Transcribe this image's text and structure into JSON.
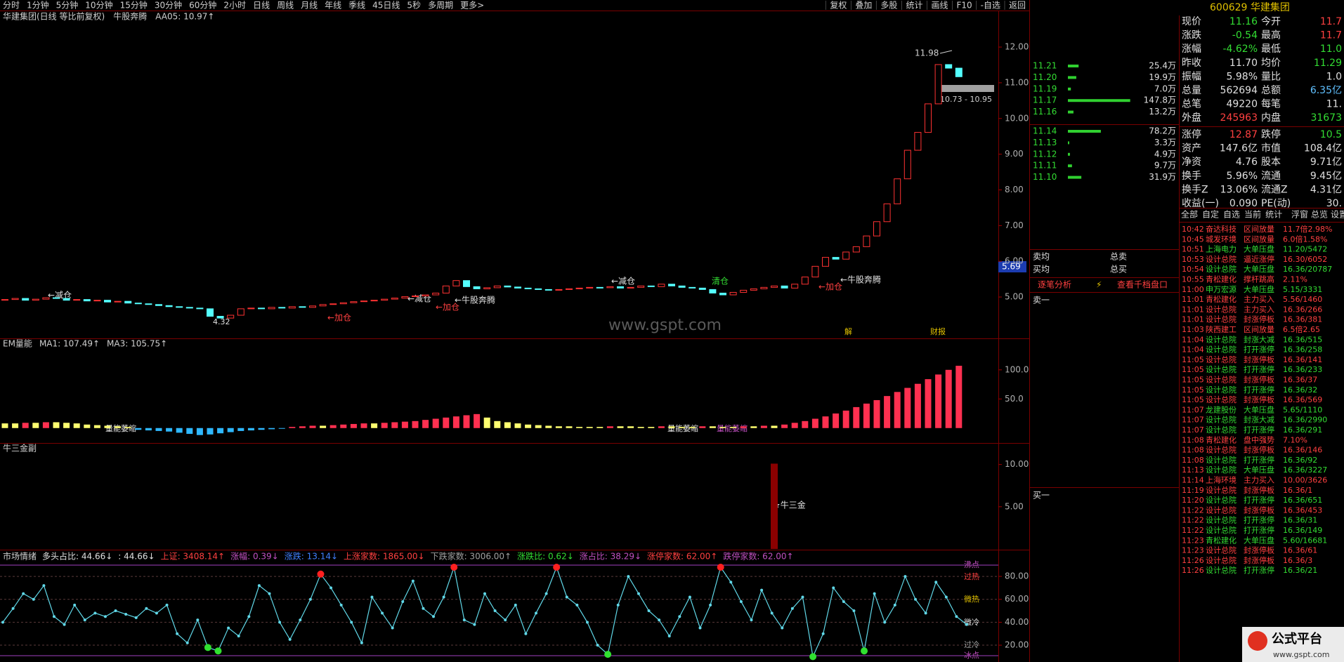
{
  "toolbar": {
    "left": [
      "分时",
      "1分钟",
      "5分钟",
      "10分钟",
      "15分钟",
      "30分钟",
      "60分钟",
      "2小时",
      "日线",
      "周线",
      "月线",
      "年线",
      "季线",
      "45日线",
      "5秒",
      "多周期",
      "更多>"
    ],
    "right": [
      "复权",
      "叠加",
      "多股",
      "统计",
      "画线",
      "F10",
      "-自选",
      "返回"
    ]
  },
  "main": {
    "title": "华建集团(日线 等比前复权)",
    "indicator": "牛股奔腾",
    "aa05": "AA05: 10.97↑",
    "ylim": [
      3.92,
      12.63
    ],
    "yticks": [
      {
        "value": 5,
        "label": "5.00"
      },
      {
        "value": 6,
        "label": "6.00"
      },
      {
        "value": 7,
        "label": "7.00"
      },
      {
        "value": 8,
        "label": "8.00"
      },
      {
        "value": 9,
        "label": "9.00"
      },
      {
        "value": 10,
        "label": "10.00"
      },
      {
        "value": 11,
        "label": "11.00"
      },
      {
        "value": 12,
        "label": "12.00"
      }
    ],
    "closes": [
      4.92,
      4.95,
      4.9,
      4.93,
      4.97,
      4.95,
      4.9,
      4.92,
      4.88,
      4.9,
      4.85,
      4.87,
      4.82,
      4.8,
      4.78,
      4.75,
      4.72,
      4.7,
      4.68,
      4.66,
      4.45,
      4.4,
      4.48,
      4.66,
      4.68,
      4.66,
      4.7,
      4.68,
      4.72,
      4.7,
      4.74,
      4.78,
      4.8,
      4.83,
      4.86,
      4.88,
      4.9,
      4.93,
      4.96,
      5.0,
      5.02,
      5.05,
      5.1,
      5.3,
      5.45,
      5.28,
      5.22,
      5.25,
      5.3,
      5.27,
      5.24,
      5.22,
      5.2,
      5.18,
      5.2,
      5.22,
      5.24,
      5.26,
      5.25,
      5.28,
      5.24,
      5.26,
      5.3,
      5.28,
      5.35,
      5.3,
      5.26,
      5.24,
      5.2,
      5.1,
      5.05,
      5.12,
      5.18,
      5.22,
      5.26,
      5.3,
      5.24,
      5.35,
      5.55,
      5.85,
      6.1,
      6.05,
      6.25,
      6.4,
      6.7,
      7.1,
      7.6,
      8.3,
      9.1,
      9.6,
      10.4,
      11.5,
      11.4,
      11.16
    ],
    "annotations": {
      "high": "11.98",
      "range": "10.73 - 10.95",
      "low": "4.32",
      "reduce1": "←减仓",
      "reduce2": "←减仓",
      "reduce3": "←减仓",
      "add1": "←加仓",
      "add2": "←加仓",
      "add3": "←加仓",
      "clear": "清仓",
      "signal1": "←牛股奔腾",
      "signal2": "←牛股奔腾",
      "event1": "解",
      "event2": "财报"
    },
    "price_tag": "5.69",
    "watermark": "www.gspt.com"
  },
  "volume": {
    "title": "EM量能",
    "ma1": "MA1: 107.49↑",
    "ma3": "MA3: 105.75↑",
    "ylim": [
      -22,
      142
    ],
    "yticks": [
      {
        "value": 50,
        "label": "50.0"
      },
      {
        "value": 100,
        "label": "100.0"
      }
    ],
    "values": [
      8,
      8,
      9,
      9,
      10,
      10,
      9,
      8,
      6,
      5,
      4,
      3,
      2,
      -3,
      -4,
      -5,
      -6,
      -8,
      -10,
      -12,
      -11,
      -9,
      -7,
      -5,
      -4,
      -3,
      -2,
      -1,
      2,
      3,
      4,
      4,
      5,
      6,
      7,
      8,
      8,
      9,
      10,
      11,
      12,
      14,
      16,
      18,
      20,
      22,
      24,
      18,
      12,
      10,
      8,
      6,
      5,
      4,
      3,
      3,
      2,
      2,
      2,
      3,
      3,
      3,
      2,
      2,
      3,
      3,
      2,
      2,
      3,
      3,
      2,
      2,
      3,
      3,
      4,
      4,
      6,
      9,
      12,
      16,
      20,
      25,
      30,
      36,
      42,
      48,
      55,
      62,
      69,
      76,
      84,
      92,
      100,
      107
    ],
    "labels": [
      "量能萎缩",
      "量能萎缩",
      "量能萎缩"
    ]
  },
  "niu": {
    "title": "牛三金副",
    "label": "★牛三金",
    "ylim": [
      0,
      11.8
    ],
    "yticks": [
      {
        "value": 5,
        "label": "5.00"
      },
      {
        "value": 10,
        "label": "10.00"
      }
    ],
    "x": [
      75
    ],
    "values": [
      10.1
    ]
  },
  "sentiment": {
    "items": [
      {
        "text": "市场情绪",
        "color": "#d0d0d0"
      },
      {
        "text": "多头占比: 44.66↓",
        "color": "#e0e0e0"
      },
      {
        "text": ": 44.66↓",
        "color": "#e0e0e0"
      },
      {
        "text": "上证: 3408.14↑",
        "color": "#ff4040"
      },
      {
        "text": "涨幅: 0.39↓",
        "color": "#c050c0"
      },
      {
        "text": "涨跌: 13.14↓",
        "color": "#4080ff"
      },
      {
        "text": "上涨家数: 1865.00↓",
        "color": "#ff4040"
      },
      {
        "text": "下跌家数: 3006.00↑",
        "color": "#a0a0a0"
      },
      {
        "text": "涨跌比: 0.62↓",
        "color": "#33dd33"
      },
      {
        "text": "涨占比: 38.29↓",
        "color": "#c050c0"
      },
      {
        "text": "涨停家数: 62.00↑",
        "color": "#ff4040"
      },
      {
        "text": "跌停家数: 62.00↑",
        "color": "#c050c0"
      }
    ],
    "ylim": [
      8.4,
      92.9
    ],
    "yticks": [
      {
        "value": 20,
        "label": "20.00"
      },
      {
        "value": 40,
        "label": "40.00"
      },
      {
        "value": 60,
        "label": "60.00"
      },
      {
        "value": 80,
        "label": "80.00"
      }
    ],
    "zones": [
      "沸点",
      "过热",
      "微热",
      "微冷",
      "过冷",
      "冰点"
    ],
    "values": [
      40,
      52,
      65,
      60,
      72,
      45,
      38,
      55,
      42,
      48,
      45,
      50,
      47,
      44,
      52,
      48,
      55,
      30,
      22,
      42,
      18,
      15,
      35,
      28,
      45,
      72,
      65,
      40,
      25,
      42,
      60,
      82,
      70,
      55,
      40,
      22,
      62,
      48,
      35,
      58,
      76,
      52,
      45,
      62,
      88,
      42,
      38,
      65,
      50,
      42,
      55,
      30,
      48,
      65,
      88,
      62,
      55,
      40,
      20,
      12,
      55,
      80,
      65,
      50,
      42,
      28,
      45,
      62,
      35,
      55,
      88,
      75,
      58,
      42,
      68,
      48,
      35,
      52,
      62,
      10,
      30,
      70,
      58,
      50,
      15,
      65,
      40,
      55,
      80,
      60,
      48,
      75,
      62,
      45,
      38
    ]
  },
  "orderbook": {
    "asks": [
      {
        "price": "11.21",
        "vol": {
          "value": 25.4,
          "label": "25.4万"
        }
      },
      {
        "price": "11.20",
        "vol": {
          "value": 19.9,
          "label": "19.9万"
        }
      },
      {
        "price": "11.19",
        "vol": {
          "value": 7.0,
          "label": "7.0万"
        }
      },
      {
        "price": "11.17",
        "vol": {
          "value": 147.8,
          "label": "147.8万"
        }
      },
      {
        "price": "11.16",
        "vol": {
          "value": 13.2,
          "label": "13.2万"
        }
      }
    ],
    "bids": [
      {
        "price": "11.14",
        "vol": {
          "value": 78.2,
          "label": "78.2万"
        }
      },
      {
        "price": "11.13",
        "vol": {
          "value": 3.3,
          "label": "3.3万"
        }
      },
      {
        "price": "11.12",
        "vol": {
          "value": 4.9,
          "label": "4.9万"
        }
      },
      {
        "price": "11.11",
        "vol": {
          "value": 9.7,
          "label": "9.7万"
        }
      },
      {
        "price": "11.10",
        "vol": {
          "value": 31.9,
          "label": "31.9万"
        }
      }
    ],
    "labels": {
      "avg_sell": "卖均",
      "total_sell": "总卖",
      "avg_buy": "买均",
      "total_buy": "总买",
      "sell1": "卖一",
      "buy1": "买一"
    },
    "buttons": [
      "逐笔分析",
      "查看千档盘口"
    ]
  },
  "quote": {
    "header": "600629 华建集团",
    "rows": [
      {
        "cells": [
          "现价",
          "11.16",
          "今开",
          "11.7"
        ],
        "colors": [
          "#33dd33",
          "#ff4040"
        ]
      },
      {
        "cells": [
          "涨跌",
          "-0.54",
          "最高",
          "11.7"
        ],
        "colors": [
          "#33dd33",
          "#ff4040"
        ]
      },
      {
        "cells": [
          "涨幅",
          "-4.62%",
          "最低",
          "11.0"
        ],
        "colors": [
          "#33dd33",
          "#33dd33"
        ]
      },
      {
        "cells": [
          "昨收",
          "11.70",
          "均价",
          "11.29"
        ],
        "colors": [
          "#e0e0e0",
          "#33dd33"
        ]
      },
      {
        "cells": [
          "振幅",
          "5.98%",
          "量比",
          "1.0"
        ],
        "colors": [
          "#e0e0e0",
          "#e0e0e0"
        ]
      },
      {
        "cells": [
          "总量",
          "562694",
          "总额",
          "6.35亿"
        ],
        "colors": [
          "#e0e0e0",
          "#60c0ff"
        ]
      },
      {
        "cells": [
          "总笔",
          "49220",
          "每笔",
          "11."
        ],
        "colors": [
          "#e0e0e0",
          "#e0e0e0"
        ]
      },
      {
        "cells": [
          "外盘",
          "245963",
          "内盘",
          "31673"
        ],
        "colors": [
          "#ff4040",
          "#33dd33"
        ]
      },
      {
        "cells": [
          "涨停",
          "12.87",
          "跌停",
          "10.5"
        ],
        "colors": [
          "#ff4040",
          "#33dd33"
        ]
      },
      {
        "cells": [
          "资产",
          "147.6亿",
          "市值",
          "108.4亿"
        ],
        "colors": [
          "#e0e0e0",
          "#e0e0e0"
        ]
      },
      {
        "cells": [
          "净资",
          "4.76",
          "股本",
          "9.71亿"
        ],
        "colors": [
          "#e0e0e0",
          "#e0e0e0"
        ]
      },
      {
        "cells": [
          "换手",
          "5.96%",
          "流通",
          "9.45亿"
        ],
        "colors": [
          "#e0e0e0",
          "#e0e0e0"
        ]
      },
      {
        "cells": [
          "换手Z",
          "13.06%",
          "流通Z",
          "4.31亿"
        ],
        "colors": [
          "#e0e0e0",
          "#e0e0e0"
        ]
      },
      {
        "cells": [
          "收益(一)",
          "0.090",
          "PE(动)",
          "30."
        ],
        "colors": [
          "#e0e0e0",
          "#e0e0e0"
        ]
      }
    ],
    "tabs_left": [
      "全部",
      "自定",
      "自选",
      "当前",
      "统计"
    ],
    "tabs_right": [
      "浮窗",
      "总览",
      "设置"
    ]
  },
  "alerts": [
    {
      "time": "10:42",
      "name": "奋达科技",
      "event": "区间放量",
      "detail": "11.7倍2.98%",
      "color": "#ff4040"
    },
    {
      "time": "10:45",
      "name": "城发环境",
      "event": "区间放量",
      "detail": "6.0倍1.58%",
      "color": "#ff4040"
    },
    {
      "time": "10:51",
      "name": "上海电力",
      "event": "大单压盘",
      "detail": "11.20/5472",
      "color": "#33dd33"
    },
    {
      "time": "10:53",
      "name": "设计总院",
      "event": "逼近涨停",
      "detail": "16.30/6052",
      "color": "#ff4040"
    },
    {
      "time": "10:54",
      "name": "设计总院",
      "event": "大单压盘",
      "detail": "16.36/20787",
      "color": "#33dd33"
    },
    {
      "time": "10:55",
      "name": "青松建化",
      "event": "撑杆跳高",
      "detail": "2.11%",
      "color": "#ff4040"
    },
    {
      "time": "11:00",
      "name": "申万宏源",
      "event": "大单压盘",
      "detail": "5.15/3331",
      "color": "#33dd33"
    },
    {
      "time": "11:01",
      "name": "青松建化",
      "event": "主力买入",
      "detail": "5.56/1460",
      "color": "#ff4040"
    },
    {
      "time": "11:01",
      "name": "设计总院",
      "event": "主力买入",
      "detail": "16.36/266",
      "color": "#ff4040"
    },
    {
      "time": "11:01",
      "name": "设计总院",
      "event": "封涨停板",
      "detail": "16.36/381",
      "color": "#ff4040"
    },
    {
      "time": "11:03",
      "name": "陕西建工",
      "event": "区间放量",
      "detail": "6.5倍2.65",
      "color": "#ff4040"
    },
    {
      "time": "11:04",
      "name": "设计总院",
      "event": "封涨大减",
      "detail": "16.36/515",
      "color": "#33dd33"
    },
    {
      "time": "11:04",
      "name": "设计总院",
      "event": "打开涨停",
      "detail": "16.36/258",
      "color": "#33dd33"
    },
    {
      "time": "11:05",
      "name": "设计总院",
      "event": "封涨停板",
      "detail": "16.36/141",
      "color": "#ff4040"
    },
    {
      "time": "11:05",
      "name": "设计总院",
      "event": "打开涨停",
      "detail": "16.36/233",
      "color": "#33dd33"
    },
    {
      "time": "11:05",
      "name": "设计总院",
      "event": "封涨停板",
      "detail": "16.36/37",
      "color": "#ff4040"
    },
    {
      "time": "11:05",
      "name": "设计总院",
      "event": "打开涨停",
      "detail": "16.36/32",
      "color": "#33dd33"
    },
    {
      "time": "11:05",
      "name": "设计总院",
      "event": "封涨停板",
      "detail": "16.36/569",
      "color": "#ff4040"
    },
    {
      "time": "11:07",
      "name": "龙建股份",
      "event": "大单压盘",
      "detail": "5.65/1110",
      "color": "#33dd33"
    },
    {
      "time": "11:07",
      "name": "设计总院",
      "event": "封涨大减",
      "detail": "16.36/2990",
      "color": "#33dd33"
    },
    {
      "time": "11:07",
      "name": "设计总院",
      "event": "打开涨停",
      "detail": "16.36/291",
      "color": "#33dd33"
    },
    {
      "time": "11:08",
      "name": "青松建化",
      "event": "盘中强势",
      "detail": "7.10%",
      "color": "#ff4040"
    },
    {
      "time": "11:08",
      "name": "设计总院",
      "event": "封涨停板",
      "detail": "16.36/146",
      "color": "#ff4040"
    },
    {
      "time": "11:08",
      "name": "设计总院",
      "event": "打开涨停",
      "detail": "16.36/92",
      "color": "#33dd33"
    },
    {
      "time": "11:13",
      "name": "设计总院",
      "event": "大单压盘",
      "detail": "16.36/3227",
      "color": "#33dd33"
    },
    {
      "time": "11:14",
      "name": "上海环境",
      "event": "主力买入",
      "detail": "10.00/3626",
      "color": "#ff4040"
    },
    {
      "time": "11:19",
      "name": "设计总院",
      "event": "封涨停板",
      "detail": "16.36/1",
      "color": "#ff4040"
    },
    {
      "time": "11:20",
      "name": "设计总院",
      "event": "打开涨停",
      "detail": "16.36/651",
      "color": "#33dd33"
    },
    {
      "time": "11:22",
      "name": "设计总院",
      "event": "封涨停板",
      "detail": "16.36/453",
      "color": "#ff4040"
    },
    {
      "time": "11:22",
      "name": "设计总院",
      "event": "打开涨停",
      "detail": "16.36/31",
      "color": "#33dd33"
    },
    {
      "time": "11:22",
      "name": "设计总院",
      "event": "打开涨停",
      "detail": "16.36/149",
      "color": "#33dd33"
    },
    {
      "time": "11:23",
      "name": "青松建化",
      "event": "大单压盘",
      "detail": "5.60/16681",
      "color": "#33dd33"
    },
    {
      "time": "11:23",
      "name": "设计总院",
      "event": "封涨停板",
      "detail": "16.36/61",
      "color": "#ff4040"
    },
    {
      "time": "11:26",
      "name": "设计总院",
      "event": "封涨停板",
      "detail": "16.36/3",
      "color": "#ff4040"
    },
    {
      "time": "11:26",
      "name": "设计总院",
      "event": "打开涨停",
      "detail": "16.36/21",
      "color": "#33dd33"
    }
  ],
  "footer": {
    "logo": "公式平台",
    "url": "www.gspt.com"
  }
}
